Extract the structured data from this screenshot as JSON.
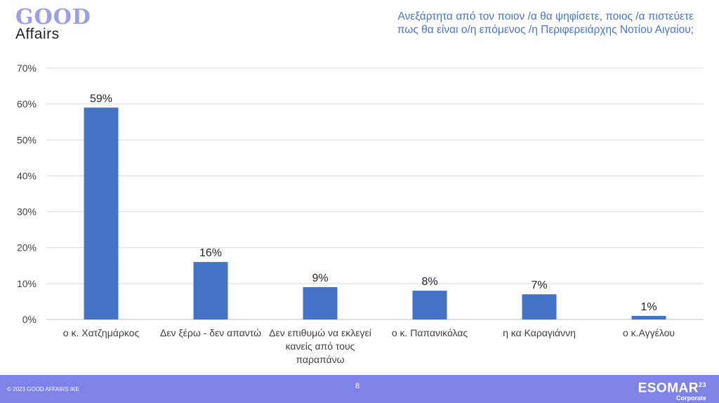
{
  "logo": {
    "top": "GOOD",
    "bottom": "Affairs"
  },
  "header": {
    "title_line1": "Ανεξάρτητα από τον ποιον /α θα ψηφίσετε, ποιος /α πιστεύετε",
    "title_line2": "πως θα είναι ο/η επόμενος /η Περιφερειάρχης Νοτίου Αιγαίου;"
  },
  "footer": {
    "copyright": "© 2023 GOOD AFFAIRS IKE",
    "page_number": "8",
    "badge_name": "ESOMAR",
    "badge_sup": "23",
    "badge_sub": "Corporate"
  },
  "colors": {
    "bar": "#4472c4",
    "grid": "#d9d9d9",
    "footer": "#7f83e6",
    "title": "#4a74c9"
  },
  "chart_data": {
    "type": "bar",
    "title": "Ανεξάρτητα από τον ποιον /α θα ψηφίσετε, ποιος /α πιστεύετε πως θα είναι ο/η επόμενος /η Περιφερειάρχης Νοτίου Αιγαίου;",
    "categories": [
      [
        "ο κ. Χατζημάρκος"
      ],
      [
        "Δεν ξέρω - δεν απαντώ"
      ],
      [
        "Δεν επιθυμώ να εκλεγεί",
        "κανείς από τους",
        "παραπάνω"
      ],
      [
        "ο κ. Παπανικόλας"
      ],
      [
        "η κα Καραγιάννη"
      ],
      [
        "ο κ.Αγγέλου"
      ]
    ],
    "values": [
      59,
      16,
      9,
      8,
      7,
      1
    ],
    "value_labels": [
      "59%",
      "16%",
      "9%",
      "8%",
      "7%",
      "1%"
    ],
    "ylim": [
      0,
      70
    ],
    "yticks": [
      0,
      10,
      20,
      30,
      40,
      50,
      60,
      70
    ],
    "ytick_labels": [
      "0%",
      "10%",
      "20%",
      "30%",
      "40%",
      "50%",
      "60%",
      "70%"
    ],
    "xlabel": "",
    "ylabel": "",
    "grid": true
  }
}
